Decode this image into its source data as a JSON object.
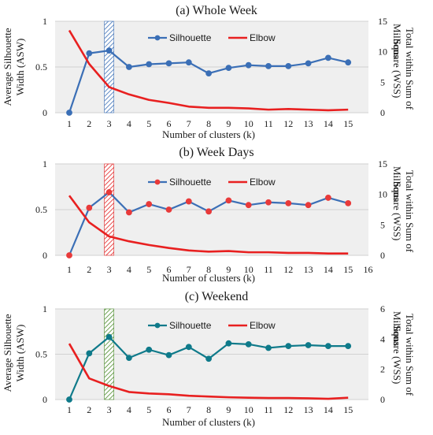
{
  "chart_data": [
    {
      "type": "line",
      "title": "(a) Whole Week",
      "xlabel": "Number of clusters (k)",
      "ylabel": "Average Silhouette Width (ASW)",
      "ylabel_lines": [
        "Average Silhouette",
        "Width (ASW)"
      ],
      "y2label": "Total within Sum of Square (WSS)",
      "y2label_lines": [
        "Total within Sum of",
        "Square (WSS)"
      ],
      "y2unit": "Millions",
      "x_ticks": [
        "1",
        "2",
        "3",
        "4",
        "5",
        "6",
        "7",
        "8",
        "9",
        "10",
        "11",
        "12",
        "13",
        "14",
        "15"
      ],
      "xlim": [
        1,
        15
      ],
      "ylim": [
        0,
        1
      ],
      "y_ticks": [
        "0",
        "0.5",
        "1"
      ],
      "y2lim": [
        0,
        15
      ],
      "y2_ticks": [
        "0",
        "5",
        "10",
        "15"
      ],
      "highlight_k": 3,
      "highlight_color": "#3b6fb6",
      "grid": true,
      "legend_position": "top",
      "series": [
        {
          "name": "Silhouette",
          "axis": "left",
          "color": "#3b6fb6",
          "marker_color": "#3b6fb6",
          "x": [
            1,
            2,
            3,
            4,
            5,
            6,
            7,
            8,
            9,
            10,
            11,
            12,
            13,
            14,
            15
          ],
          "values": [
            0.0,
            0.65,
            0.68,
            0.5,
            0.53,
            0.54,
            0.55,
            0.43,
            0.49,
            0.52,
            0.51,
            0.51,
            0.54,
            0.6,
            0.55
          ]
        },
        {
          "name": "Elbow",
          "axis": "right",
          "color": "#e82020",
          "x": [
            1,
            2,
            3,
            4,
            5,
            6,
            7,
            8,
            9,
            10,
            11,
            12,
            13,
            14,
            15
          ],
          "values": [
            13.5,
            8.0,
            4.2,
            3.0,
            2.1,
            1.6,
            1.0,
            0.8,
            0.8,
            0.7,
            0.5,
            0.6,
            0.5,
            0.4,
            0.5
          ]
        }
      ]
    },
    {
      "type": "line",
      "title": "(b) Week Days",
      "xlabel": "Number of clusters (k)",
      "ylabel": "",
      "ylabel_lines": [],
      "y2label": "Total within Sum of Square (WSS)",
      "y2label_lines": [
        "Total within Sum of",
        "Square (WSS)"
      ],
      "y2unit": "Millions",
      "x_ticks": [
        "1",
        "2",
        "3",
        "4",
        "5",
        "6",
        "7",
        "8",
        "9",
        "10",
        "11",
        "12",
        "13",
        "14",
        "15",
        "16"
      ],
      "xlim": [
        1,
        16
      ],
      "ylim": [
        0,
        1
      ],
      "y_ticks": [
        "0",
        "0.5",
        "1"
      ],
      "y2lim": [
        0,
        15
      ],
      "y2_ticks": [
        "0",
        "5",
        "10",
        "15"
      ],
      "highlight_k": 3,
      "highlight_color": "#e02020",
      "grid": true,
      "legend_position": "top",
      "series": [
        {
          "name": "Silhouette",
          "axis": "left",
          "color": "#3b6fb6",
          "marker_color": "#e83a3a",
          "x": [
            1,
            2,
            3,
            4,
            5,
            6,
            7,
            8,
            9,
            10,
            11,
            12,
            13,
            14,
            15
          ],
          "values": [
            0.0,
            0.52,
            0.69,
            0.47,
            0.56,
            0.5,
            0.59,
            0.48,
            0.6,
            0.55,
            0.58,
            0.57,
            0.55,
            0.63,
            0.57
          ]
        },
        {
          "name": "Elbow",
          "axis": "right",
          "color": "#e82020",
          "x": [
            1,
            2,
            3,
            4,
            5,
            6,
            7,
            8,
            9,
            10,
            11,
            12,
            13,
            14,
            15
          ],
          "values": [
            9.8,
            5.4,
            3.1,
            2.3,
            1.7,
            1.2,
            0.8,
            0.6,
            0.7,
            0.5,
            0.5,
            0.4,
            0.4,
            0.3,
            0.3
          ]
        }
      ]
    },
    {
      "type": "line",
      "title": "(c) Weekend",
      "xlabel": "Number of clusters (k)",
      "ylabel": "Average Silhouette Width (ASW)",
      "ylabel_lines": [
        "Average Silhouette",
        "Width (ASW)"
      ],
      "y2label": "Total within Sum of Square (WSS)",
      "y2label_lines": [
        "Total within Sum of",
        "Square (WSS)"
      ],
      "y2unit": "Millions",
      "x_ticks": [
        "1",
        "2",
        "3",
        "4",
        "5",
        "6",
        "7",
        "8",
        "9",
        "10",
        "11",
        "12",
        "13",
        "14",
        "15"
      ],
      "xlim": [
        1,
        15
      ],
      "ylim": [
        0,
        1
      ],
      "y_ticks": [
        "0",
        "0.5",
        "1"
      ],
      "y2lim": [
        0,
        6
      ],
      "y2_ticks": [
        "0",
        "2",
        "4",
        "6"
      ],
      "highlight_k": 3,
      "highlight_color": "#4a8a2a",
      "grid": true,
      "legend_position": "top",
      "series": [
        {
          "name": "Silhouette",
          "axis": "left",
          "color": "#0f7a8a",
          "marker_color": "#0f7a8a",
          "x": [
            1,
            2,
            3,
            4,
            5,
            6,
            7,
            8,
            9,
            10,
            11,
            12,
            13,
            14,
            15
          ],
          "values": [
            0.0,
            0.51,
            0.69,
            0.46,
            0.55,
            0.49,
            0.58,
            0.45,
            0.62,
            0.61,
            0.57,
            0.59,
            0.6,
            0.59,
            0.59
          ]
        },
        {
          "name": "Elbow",
          "axis": "right",
          "color": "#e82020",
          "x": [
            1,
            2,
            3,
            4,
            5,
            6,
            7,
            8,
            9,
            10,
            11,
            12,
            13,
            14,
            15
          ],
          "values": [
            3.7,
            1.4,
            0.9,
            0.5,
            0.4,
            0.35,
            0.25,
            0.2,
            0.15,
            0.12,
            0.1,
            0.1,
            0.08,
            0.05,
            0.12
          ]
        }
      ]
    }
  ]
}
